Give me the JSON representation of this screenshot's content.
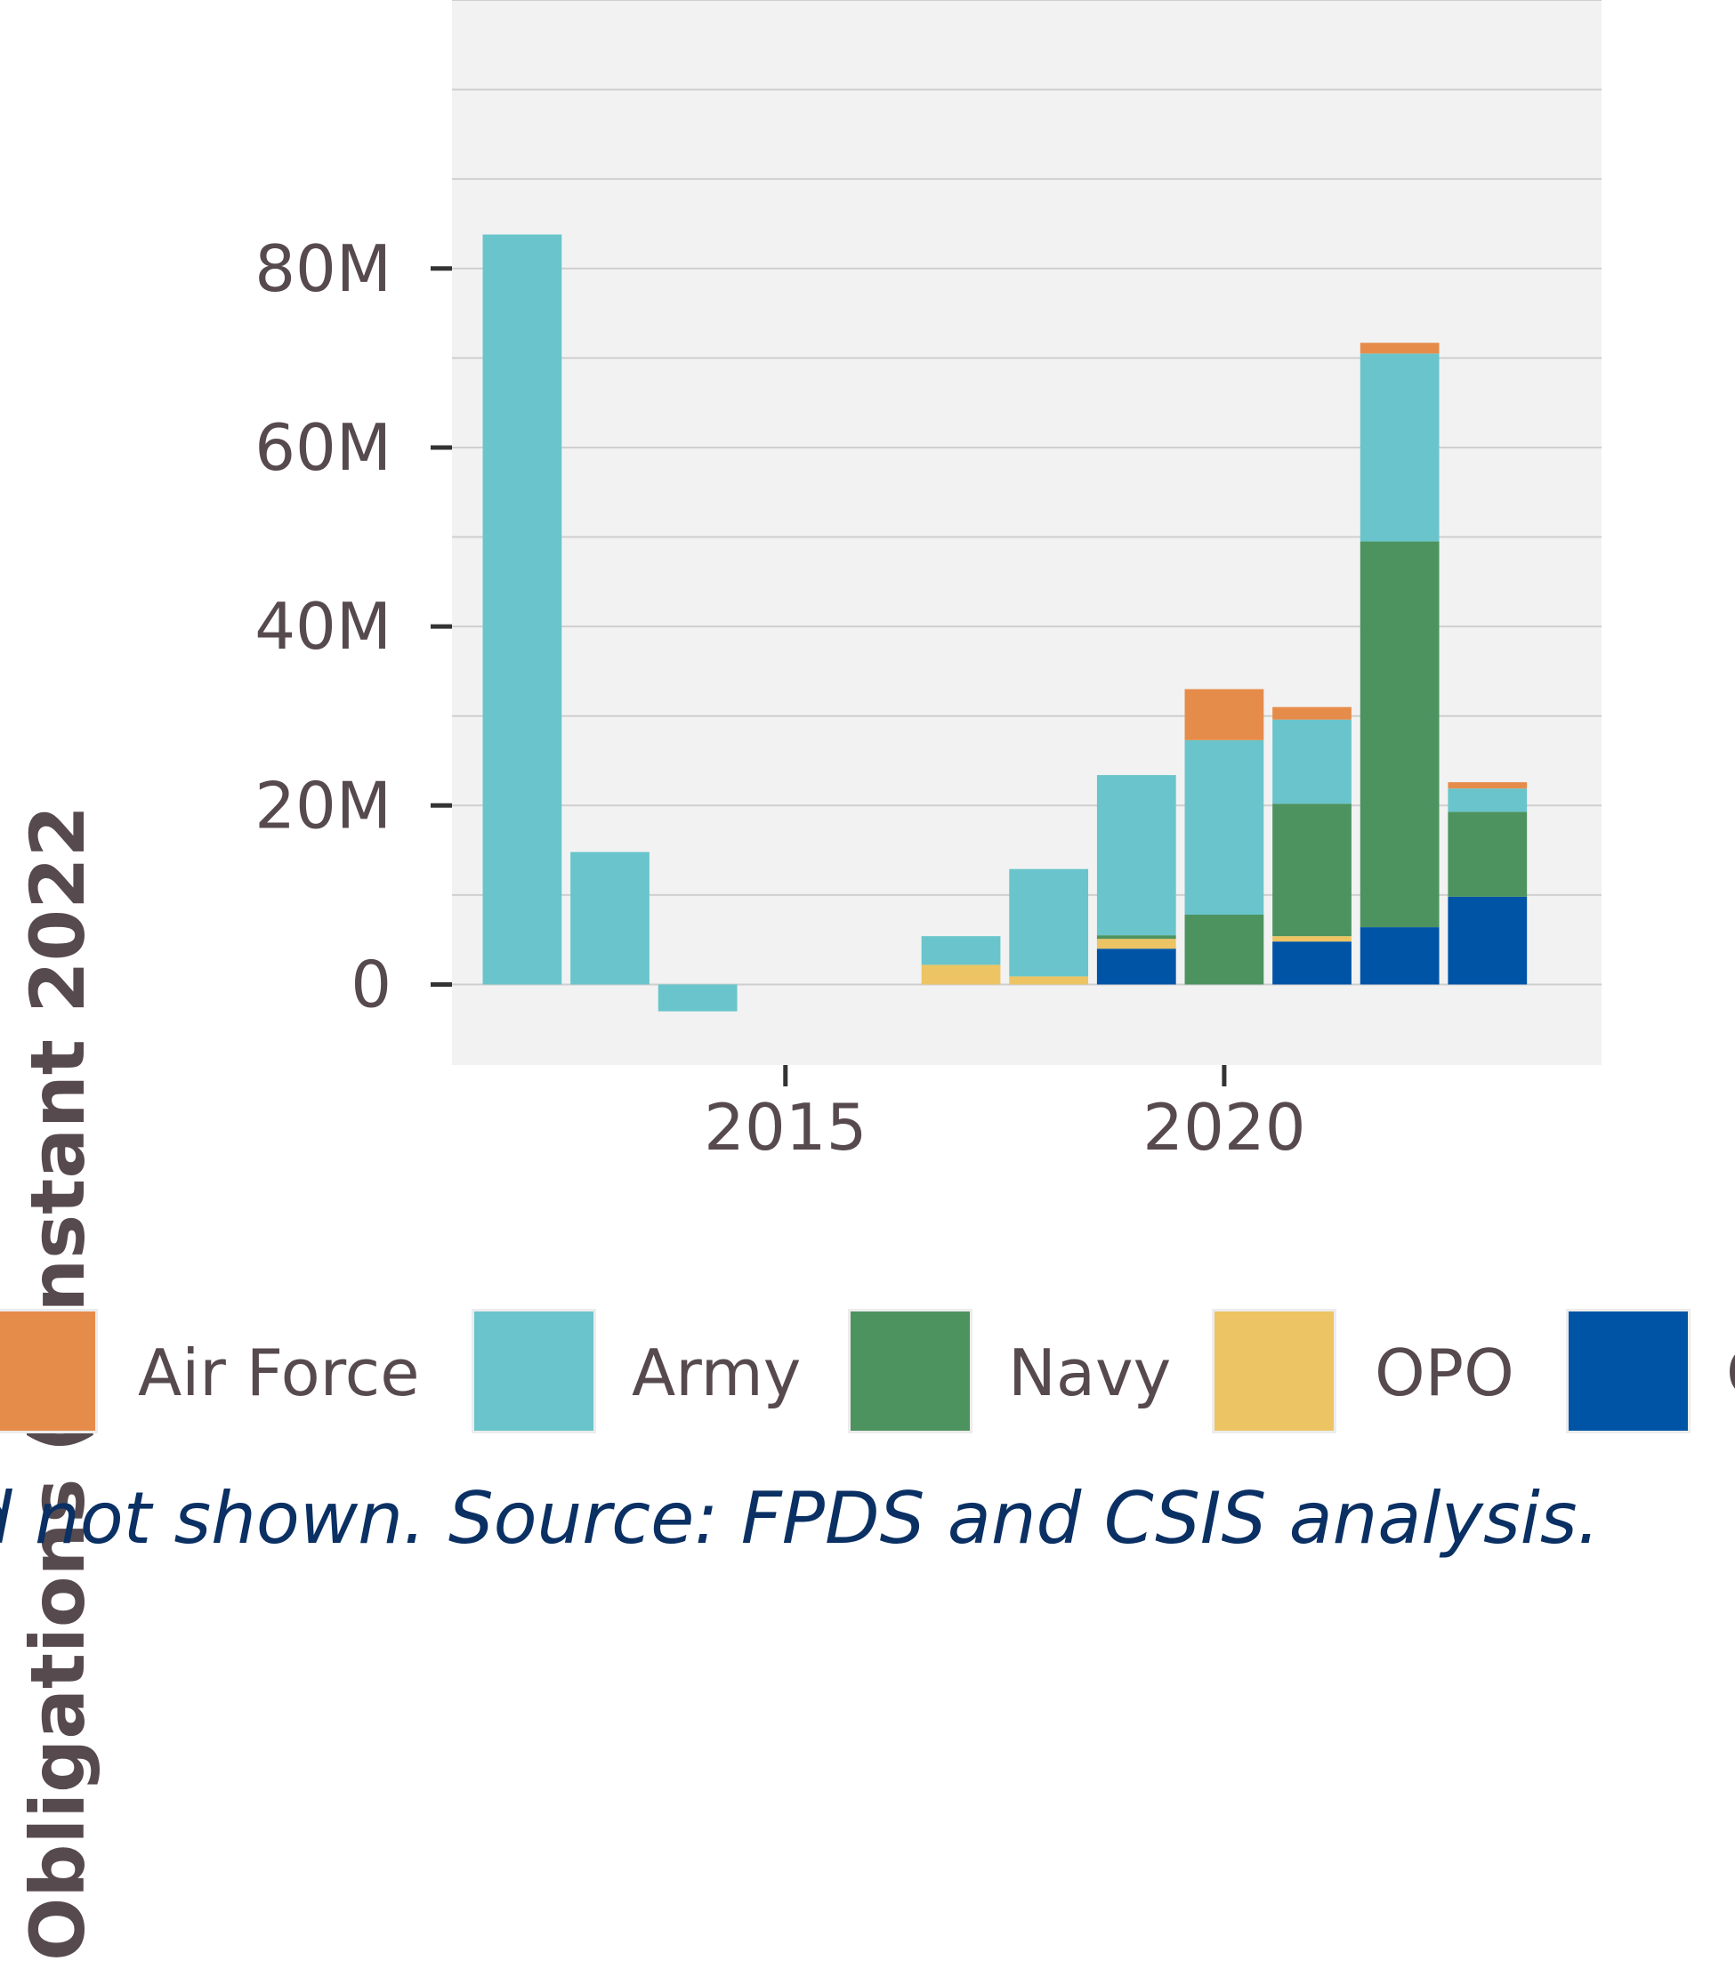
{
  "chart_data": {
    "type": "bar",
    "stacked": true,
    "title": "",
    "ylabel": "Obligations (Constant 2022",
    "xlabel": "",
    "ylim": [
      -9,
      110
    ],
    "xlim": [
      2011.2,
      2024.3
    ],
    "yticks": [
      0,
      20,
      40,
      60,
      80
    ],
    "ytick_labels": [
      "0",
      "20M",
      "40M",
      "60M",
      "80M"
    ],
    "xticks": [
      2015,
      2020
    ],
    "xtick_labels": [
      "2015",
      "2020"
    ],
    "grid": true,
    "legend_position": "bottom",
    "x": [
      2012,
      2013,
      2014,
      2015,
      2016,
      2017,
      2018,
      2019,
      2020,
      2021,
      2022,
      2023
    ],
    "series": [
      {
        "name": "O",
        "color": "#0054a6",
        "values": [
          0,
          0,
          0,
          0,
          0,
          0,
          0,
          4.0,
          0,
          4.8,
          6.4,
          9.8
        ]
      },
      {
        "name": "OPO",
        "color": "#ecc463",
        "values": [
          0,
          0,
          0,
          0,
          0,
          2.2,
          0.9,
          1.1,
          0,
          0.6,
          0,
          0
        ]
      },
      {
        "name": "Navy",
        "color": "#4c9360",
        "values": [
          0,
          0,
          0,
          0,
          0,
          0,
          0,
          0.4,
          7.8,
          14.8,
          43.1,
          9.5
        ]
      },
      {
        "name": "Army",
        "color": "#69c5cb",
        "values": [
          83.8,
          14.8,
          -3.0,
          0,
          0,
          3.2,
          12.0,
          17.9,
          19.5,
          9.4,
          21.0,
          2.6
        ]
      },
      {
        "name": "Air Force",
        "color": "#e68c4a",
        "values": [
          0,
          0,
          0,
          0,
          0,
          0,
          0,
          0,
          5.7,
          1.4,
          1.2,
          0.7
        ]
      }
    ]
  },
  "legend": [
    {
      "label": "Air Force",
      "color": "#e68c4a"
    },
    {
      "label": "Army",
      "color": "#69c5cb"
    },
    {
      "label": "Navy",
      "color": "#4c9360"
    },
    {
      "label": "OPO",
      "color": "#ecc463"
    },
    {
      "label": "O",
      "color": "#0054a6"
    }
  ],
  "caption": "beled not shown. Source: FPDS and CSIS analysis."
}
